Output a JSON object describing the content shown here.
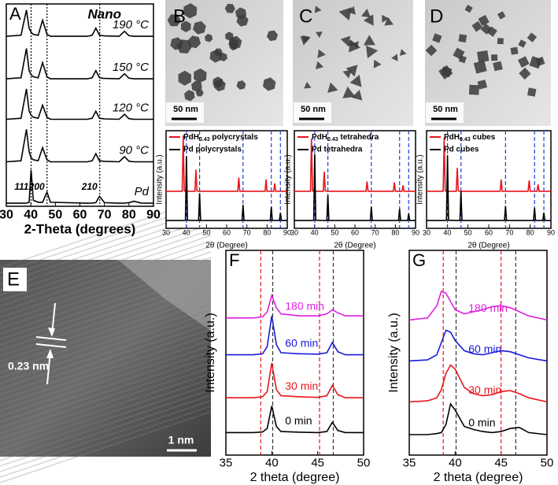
{
  "chart_data": [
    {
      "type": "line",
      "label": "A",
      "annotation": "Nano",
      "xlabel": "2-Theta (degrees)",
      "xlim": [
        30,
        90
      ],
      "xticks": [
        30,
        40,
        50,
        60,
        70,
        80,
        90
      ],
      "ylim": [
        0,
        100
      ],
      "series_labels": true,
      "reference_lines": [
        {
          "x": 40.1,
          "label": "111",
          "color": "#000000"
        },
        {
          "x": 46.6,
          "label": "200",
          "color": "#000000"
        },
        {
          "x": 68.1,
          "label": "210",
          "color": "#000000"
        }
      ],
      "x": [
        30,
        36,
        38.2,
        39.3,
        40.1,
        41,
        43,
        44.8,
        46.6,
        48,
        63,
        65,
        66.5,
        68,
        70,
        76,
        78.2,
        80,
        82,
        85,
        90
      ],
      "series": [
        {
          "name": "190 °C",
          "color": "#000000",
          "values": [
            84,
            84.5,
            97,
            88,
            86,
            85,
            84.5,
            92,
            85,
            84,
            84,
            84.5,
            88,
            84.5,
            84.2,
            84,
            86.5,
            84.3,
            84,
            84,
            84
          ]
        },
        {
          "name": "150 °C",
          "color": "#000000",
          "values": [
            63,
            63.5,
            78,
            67,
            65,
            64,
            63.5,
            71,
            64,
            63,
            63,
            63.5,
            67,
            63.5,
            63.2,
            63,
            65.5,
            63.3,
            63,
            63,
            63
          ]
        },
        {
          "name": "120 °C",
          "color": "#000000",
          "values": [
            43,
            43.5,
            58,
            47,
            45,
            44,
            43.5,
            50,
            44,
            43,
            43,
            43.5,
            47,
            43.5,
            43.2,
            43,
            45.5,
            43.3,
            43,
            43,
            43
          ]
        },
        {
          "name": "90 °C",
          "color": "#000000",
          "values": [
            22,
            22.5,
            38,
            27,
            24,
            23,
            22.5,
            29,
            23,
            22,
            22,
            22.5,
            26,
            22.5,
            22.2,
            22,
            24.5,
            22.3,
            22,
            22,
            22
          ]
        },
        {
          "name": "Pd",
          "color": "#000000",
          "values": [
            1.5,
            1.5,
            1.6,
            2,
            18,
            3,
            2,
            2,
            7,
            2,
            1.5,
            1.6,
            1.8,
            5,
            1.8,
            1.5,
            1.6,
            1.8,
            2.5,
            1.6,
            1.5
          ]
        }
      ]
    },
    {
      "type": "line",
      "xlabel": "2θ (Degree)",
      "ylabel": "Intensity (a.u.)",
      "legend": "upper left",
      "xlim": [
        30,
        90
      ],
      "xticks": [
        30,
        40,
        50,
        60,
        70,
        80,
        90
      ],
      "ylim": [
        0,
        100
      ],
      "reference_lines": [
        {
          "x": 40.1,
          "color": "#1f3fd6"
        },
        {
          "x": 46.6,
          "color": "#1f3fd6"
        },
        {
          "x": 68.1,
          "color": "#1f3fd6"
        },
        {
          "x": 82.1,
          "color": "#1f3fd6"
        },
        {
          "x": 86.6,
          "color": "#1f3fd6"
        }
      ],
      "x": [
        30,
        38,
        38.5,
        39,
        39.6,
        40.1,
        40.6,
        44.3,
        44.8,
        45.3,
        46.1,
        46.6,
        47.1,
        65.5,
        66,
        66.5,
        67.6,
        68.1,
        68.6,
        79,
        79.5,
        80,
        81.6,
        82.1,
        82.6,
        83.3,
        83.8,
        84.3,
        86.1,
        86.6,
        87.1,
        90
      ],
      "series": [
        {
          "name": "PdH0.43 polycrystals",
          "color": "#e8161b",
          "values": [
            38,
            38,
            95,
            38.5,
            38,
            38,
            38,
            38,
            60,
            38.3,
            38,
            38,
            38,
            38,
            52,
            38,
            38,
            38,
            38,
            38,
            50,
            38,
            38,
            38,
            38,
            38,
            46,
            38,
            38,
            38,
            38,
            38
          ]
        },
        {
          "name": "Pd polycrystals",
          "color": "#000000",
          "values": [
            8,
            8,
            8,
            8,
            8.3,
            74,
            8.3,
            8,
            8,
            8,
            8,
            36,
            8,
            8,
            8,
            8,
            8,
            24,
            8,
            8,
            8,
            8,
            8,
            22,
            8,
            8,
            8,
            8,
            8,
            16,
            8,
            8
          ]
        }
      ]
    },
    {
      "type": "line",
      "xlabel": "2θ (Degree)",
      "ylabel": "Intensity (a.u.)",
      "legend": "upper left",
      "xlim": [
        30,
        90
      ],
      "xticks": [
        30,
        40,
        50,
        60,
        70,
        80,
        90
      ],
      "ylim": [
        0,
        100
      ],
      "reference_lines": [
        {
          "x": 40.1,
          "color": "#1f3fd6"
        },
        {
          "x": 46.6,
          "color": "#1f3fd6"
        },
        {
          "x": 68.1,
          "color": "#1f3fd6"
        },
        {
          "x": 82.1,
          "color": "#1f3fd6"
        },
        {
          "x": 86.6,
          "color": "#1f3fd6"
        }
      ],
      "x": [
        30,
        38,
        38.5,
        39,
        39.6,
        40.1,
        40.6,
        44.3,
        44.8,
        45.3,
        46.1,
        46.6,
        47.1,
        65.5,
        66,
        66.5,
        67.6,
        68.1,
        68.6,
        79,
        79.5,
        80,
        81.6,
        82.1,
        82.6,
        83.3,
        83.8,
        84.3,
        86.1,
        86.6,
        87.1,
        90
      ],
      "series": [
        {
          "name": "PdH0.43 tetrahedra",
          "color": "#e8161b",
          "values": [
            38,
            38,
            92,
            38.5,
            38,
            38,
            38,
            38,
            58,
            38.3,
            38,
            38,
            38,
            38,
            48,
            38,
            38,
            38,
            38,
            38,
            47,
            38,
            38,
            38,
            38,
            38,
            44,
            38,
            38,
            38,
            38,
            38
          ]
        },
        {
          "name": "Pd tetrahedra",
          "color": "#000000",
          "values": [
            8,
            8,
            8,
            8,
            8.3,
            76,
            8.3,
            8,
            8,
            8,
            8,
            34,
            8,
            8,
            8,
            8,
            8,
            22,
            8,
            8,
            8,
            8,
            8,
            20,
            8,
            8,
            8,
            8,
            8,
            15,
            8,
            8
          ]
        }
      ]
    },
    {
      "type": "line",
      "xlabel": "2θ (Degree)",
      "ylabel": "Intensity (a.u.)",
      "legend": "upper left",
      "xlim": [
        30,
        90
      ],
      "xticks": [
        30,
        40,
        50,
        60,
        70,
        80,
        90
      ],
      "ylim": [
        0,
        100
      ],
      "reference_lines": [
        {
          "x": 40.1,
          "color": "#1f3fd6"
        },
        {
          "x": 46.6,
          "color": "#1f3fd6"
        },
        {
          "x": 68.1,
          "color": "#1f3fd6"
        },
        {
          "x": 82.1,
          "color": "#1f3fd6"
        },
        {
          "x": 86.6,
          "color": "#1f3fd6"
        }
      ],
      "x": [
        30,
        38,
        38.5,
        39,
        39.6,
        40.1,
        40.6,
        44.3,
        44.8,
        45.3,
        46.1,
        46.6,
        47.1,
        65.5,
        66,
        66.5,
        67.6,
        68.1,
        68.6,
        79,
        79.5,
        80,
        81.6,
        82.1,
        82.6,
        83.3,
        83.8,
        84.3,
        86.1,
        86.6,
        87.1,
        90
      ],
      "series": [
        {
          "name": "PdH0.43 cubes",
          "color": "#e8161b",
          "values": [
            38,
            38,
            93,
            38.5,
            38,
            38,
            38,
            38,
            62,
            38.3,
            38,
            38,
            38,
            38,
            50,
            38,
            38,
            38,
            38,
            38,
            49,
            38,
            38,
            38,
            38,
            38,
            45,
            38,
            38,
            38,
            38,
            38
          ]
        },
        {
          "name": "Pd cubes",
          "color": "#000000",
          "values": [
            8,
            8,
            8,
            8,
            8.3,
            75,
            8.3,
            8,
            8,
            8,
            8,
            38,
            8,
            8,
            8,
            8,
            8,
            23,
            8,
            8,
            8,
            8,
            8,
            21,
            8,
            8,
            8,
            8,
            8,
            16,
            8,
            8
          ]
        }
      ]
    },
    {
      "type": "line",
      "label": "F",
      "xlabel": "2 theta (degree)",
      "ylabel": "Intensity (a.u.)",
      "series_labels": true,
      "xlim": [
        35,
        50
      ],
      "xticks": [
        35,
        40,
        45,
        50
      ],
      "ylim": [
        0,
        100
      ],
      "reference_lines": [
        {
          "x": 38.8,
          "color": "#e8161b"
        },
        {
          "x": 45.2,
          "color": "#e8161b"
        },
        {
          "x": 40.1,
          "color": "#333333"
        },
        {
          "x": 46.7,
          "color": "#333333"
        }
      ],
      "x": [
        35,
        38,
        39,
        39.5,
        40,
        40.5,
        41,
        43,
        45,
        46,
        46.6,
        47.2,
        48,
        50
      ],
      "series": [
        {
          "name": "180 min",
          "color": "#e020e0",
          "values": [
            67,
            67,
            67.5,
            70,
            78,
            72,
            69,
            68,
            68,
            69,
            71,
            69.5,
            68,
            68
          ]
        },
        {
          "name": "60 min",
          "color": "#1a1adc",
          "values": [
            49,
            49,
            49.5,
            53,
            68,
            54,
            50,
            49.5,
            49.3,
            50,
            55,
            50.5,
            49,
            49
          ]
        },
        {
          "name": "30 min",
          "color": "#e8161b",
          "values": [
            28,
            28,
            28.5,
            31,
            45,
            32,
            29,
            28.5,
            28.2,
            29,
            34,
            29.5,
            28,
            28
          ]
        },
        {
          "name": "0 min",
          "color": "#000000",
          "values": [
            11,
            11,
            11.3,
            13,
            24,
            14,
            11.5,
            11.2,
            11,
            11.5,
            16,
            12,
            11,
            11
          ]
        }
      ]
    },
    {
      "type": "line",
      "label": "G",
      "xlabel": "2 theta (degree)",
      "ylabel": "Intensity (a.u.)",
      "series_labels": true,
      "xlim": [
        35,
        50
      ],
      "xticks": [
        35,
        40,
        45,
        50
      ],
      "ylim": [
        0,
        100
      ],
      "reference_lines": [
        {
          "x": 38.7,
          "color": "#e8161b"
        },
        {
          "x": 45.0,
          "color": "#e8161b"
        },
        {
          "x": 40.1,
          "color": "#333333"
        },
        {
          "x": 46.6,
          "color": "#333333"
        }
      ],
      "x": [
        35,
        37,
        38,
        38.5,
        39,
        39.5,
        40,
        41,
        42,
        43,
        44,
        45,
        46,
        47,
        48,
        50
      ],
      "series": [
        {
          "name": "180 min",
          "color": "#e020e0",
          "values": [
            66,
            67,
            73,
            80,
            79,
            75,
            71,
            69,
            70,
            71,
            72.5,
            73,
            72,
            70,
            68,
            66
          ]
        },
        {
          "name": "60 min",
          "color": "#1a1adc",
          "values": [
            46,
            46.5,
            49,
            55,
            61,
            60,
            56,
            51,
            49.5,
            49,
            50,
            51,
            50.5,
            49,
            47.5,
            46
          ]
        },
        {
          "name": "30 min",
          "color": "#e8161b",
          "values": [
            26,
            26.5,
            28,
            32,
            40,
            44,
            42,
            33,
            30,
            29,
            29.5,
            31,
            31.5,
            30,
            28,
            26
          ]
        },
        {
          "name": "0 min",
          "color": "#000000",
          "values": [
            10,
            10,
            10.5,
            11,
            15,
            25,
            22,
            14,
            12.5,
            11.5,
            11,
            11.5,
            13,
            13.5,
            11,
            10
          ]
        }
      ]
    }
  ],
  "images": [
    {
      "label": "B",
      "scale_bar": "50 nm"
    },
    {
      "label": "C",
      "scale_bar": "50 nm"
    },
    {
      "label": "D",
      "scale_bar": "50 nm"
    },
    {
      "label": "E",
      "spacing": "0.23 nm",
      "scale_bar": "1 nm"
    }
  ]
}
